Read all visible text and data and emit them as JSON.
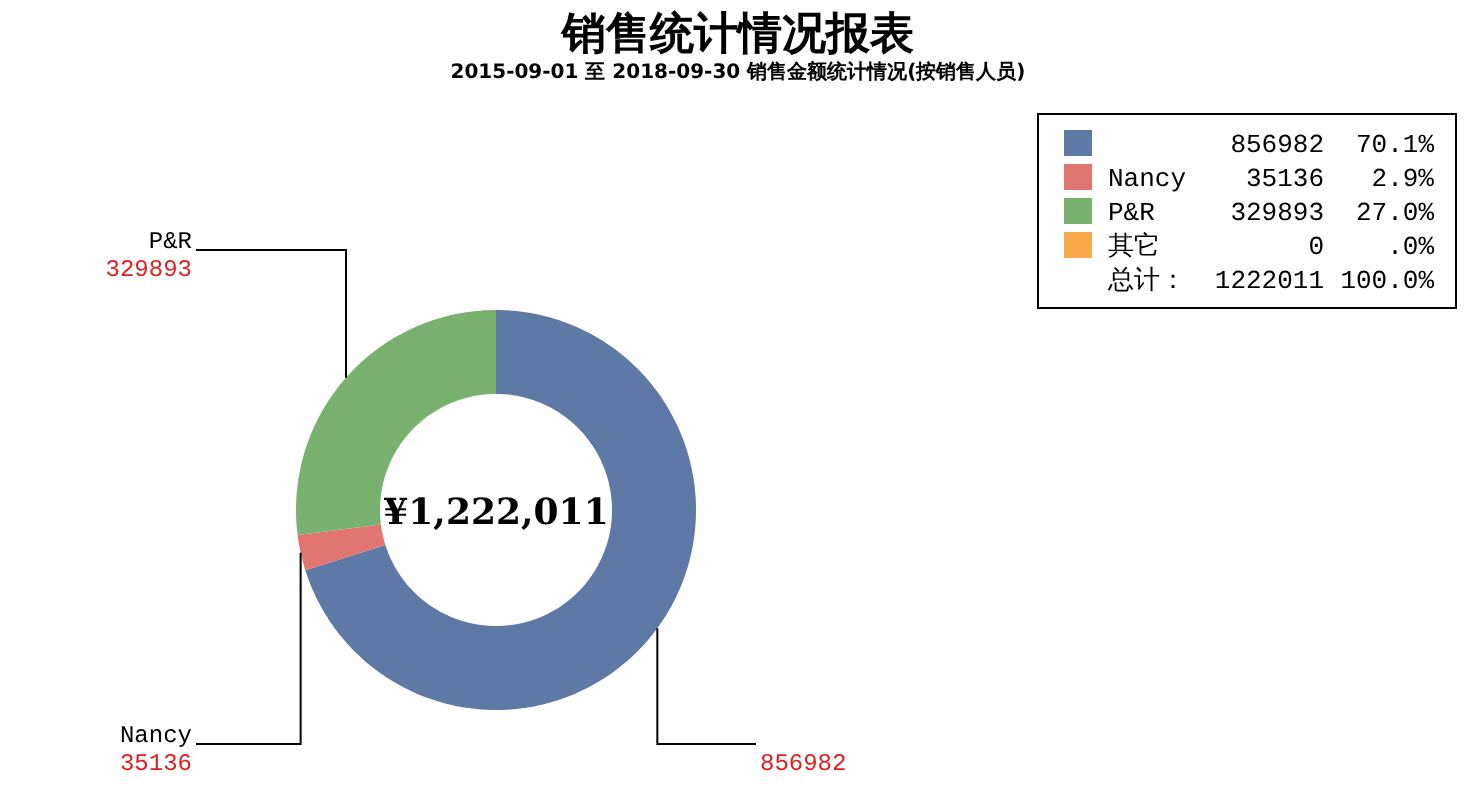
{
  "chart_data": {
    "type": "donut",
    "title": "销售统计情况报表",
    "subtitle": "2015-09-01 至 2018-09-30  销售金额统计情况(按销售人员)",
    "categories": [
      null,
      "Nancy",
      "P&R",
      "其它"
    ],
    "values": [
      856982,
      35136,
      329893,
      0
    ],
    "colors": [
      "#5f79a6",
      "#e0766f",
      "#78b26e",
      "#f8a94a"
    ],
    "data_labels": true,
    "totals": [
      "1222011"
    ],
    "annotations": [
      "¥1,222,011",
      "总计：",
      "100.0%",
      "70.1%",
      "2.9%",
      "27.0%",
      ".0%",
      "856982",
      "35136",
      "329893",
      "0"
    ],
    "legend": "top right"
  }
}
